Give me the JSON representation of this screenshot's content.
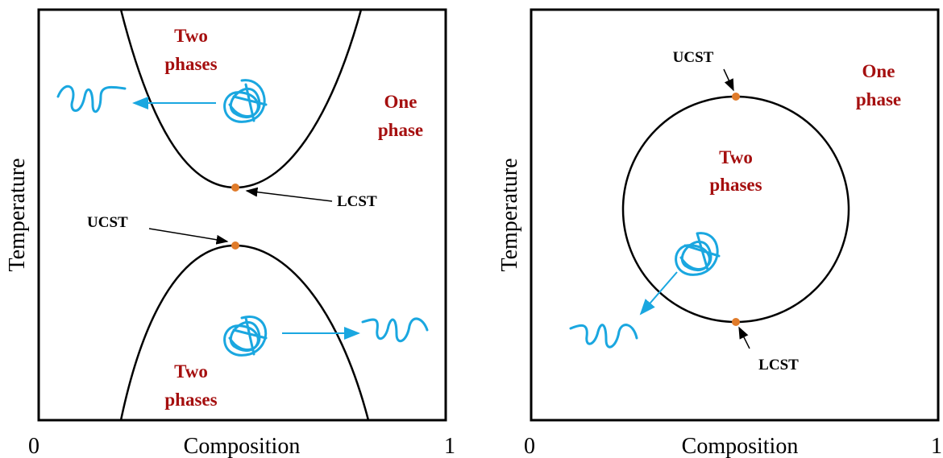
{
  "panels": [
    {
      "y_label": "Temperature",
      "x_label": "Composition",
      "x_start": "0",
      "x_end": "1",
      "regions": [
        {
          "lines": [
            "Two",
            "phases"
          ]
        },
        {
          "lines": [
            "One",
            "phase"
          ]
        },
        {
          "lines": [
            "Two",
            "phases"
          ]
        }
      ],
      "points": [
        "LCST",
        "UCST"
      ]
    },
    {
      "y_label": "Temperature",
      "x_label": "Composition",
      "x_start": "0",
      "x_end": "1",
      "regions": [
        {
          "lines": [
            "One",
            "phase"
          ]
        },
        {
          "lines": [
            "Two",
            "phases"
          ]
        }
      ],
      "points": [
        "UCST",
        "LCST"
      ]
    }
  ]
}
